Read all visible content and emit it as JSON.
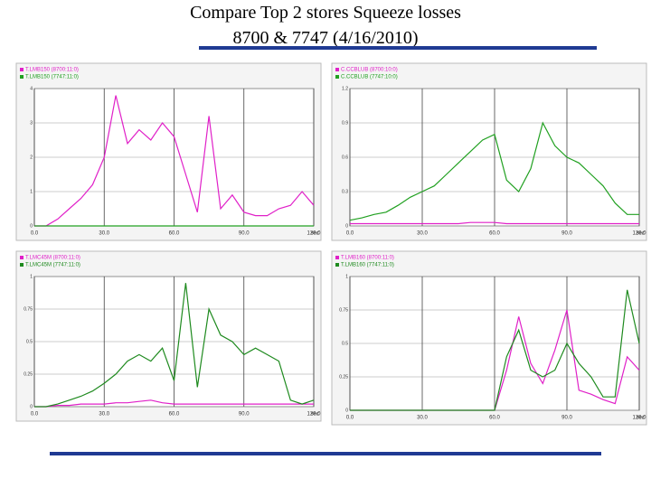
{
  "header": {
    "title_line1": "Compare Top 2 stores Squeeze losses",
    "title_line2": "8700  & 7747 (4/16/2010)"
  },
  "chart_data": [
    {
      "type": "line",
      "x_label": "sec",
      "x": [
        0,
        5,
        10,
        15,
        20,
        25,
        30,
        35,
        40,
        45,
        50,
        55,
        60,
        65,
        70,
        75,
        80,
        85,
        90,
        95,
        100,
        105,
        110,
        115,
        120
      ],
      "xlim": [
        0,
        120
      ],
      "xticks": [
        {
          "value": 0,
          "label": "0.0"
        },
        {
          "value": 30,
          "label": "30.0"
        },
        {
          "value": 60,
          "label": "60.0"
        },
        {
          "value": 90,
          "label": "90.0"
        },
        {
          "value": 120,
          "label": "120.0"
        }
      ],
      "ylim": [
        0,
        4
      ],
      "yticks": [
        0,
        1,
        2,
        3,
        4
      ],
      "grid": true,
      "series": [
        {
          "name": "T.LMB150 (8700:11:0)",
          "color": "#e020c8",
          "values": [
            0,
            0,
            0.2,
            0.5,
            0.8,
            1.2,
            2.0,
            3.8,
            2.4,
            2.8,
            2.5,
            3.0,
            2.6,
            1.5,
            0.4,
            3.2,
            0.5,
            0.9,
            0.4,
            0.3,
            0.3,
            0.5,
            0.6,
            1.0,
            0.6
          ]
        },
        {
          "name": "T.LMB150 (7747:11:0)",
          "color": "#20a020",
          "values": [
            0,
            0,
            0,
            0,
            0,
            0,
            0,
            0,
            0,
            0,
            0,
            0,
            0,
            0,
            0,
            0,
            0,
            0,
            0,
            0,
            0,
            0,
            0,
            0,
            0
          ]
        }
      ]
    },
    {
      "type": "line",
      "x_label": "sec",
      "x": [
        0,
        5,
        10,
        15,
        20,
        25,
        30,
        35,
        40,
        45,
        50,
        55,
        60,
        65,
        70,
        75,
        80,
        85,
        90,
        95,
        100,
        105,
        110,
        115,
        120
      ],
      "xlim": [
        0,
        120
      ],
      "xticks": [
        {
          "value": 0,
          "label": "0.0"
        },
        {
          "value": 30,
          "label": "30.0"
        },
        {
          "value": 60,
          "label": "60.0"
        },
        {
          "value": 90,
          "label": "90.0"
        },
        {
          "value": 120,
          "label": "120.0"
        }
      ],
      "ylim": [
        0,
        1.2
      ],
      "yticks": [
        0,
        0.3,
        0.6,
        0.9,
        1.2
      ],
      "grid": true,
      "series": [
        {
          "name": "C.CCBLUB (8700:10:0)",
          "color": "#e020c8",
          "values": [
            0.02,
            0.02,
            0.02,
            0.02,
            0.02,
            0.02,
            0.02,
            0.02,
            0.02,
            0.02,
            0.03,
            0.03,
            0.03,
            0.02,
            0.02,
            0.02,
            0.02,
            0.02,
            0.02,
            0.02,
            0.02,
            0.02,
            0.02,
            0.02,
            0.02
          ]
        },
        {
          "name": "C.CCBLUB (7747:10:0)",
          "color": "#20a020",
          "values": [
            0.05,
            0.07,
            0.1,
            0.12,
            0.18,
            0.25,
            0.3,
            0.35,
            0.45,
            0.55,
            0.65,
            0.75,
            0.8,
            0.4,
            0.3,
            0.5,
            0.9,
            0.7,
            0.6,
            0.55,
            0.45,
            0.35,
            0.2,
            0.1,
            0.1
          ]
        }
      ]
    },
    {
      "type": "line",
      "x_label": "sec",
      "x": [
        0,
        5,
        10,
        15,
        20,
        25,
        30,
        35,
        40,
        45,
        50,
        55,
        60,
        65,
        70,
        75,
        80,
        85,
        90,
        95,
        100,
        105,
        110,
        115,
        120
      ],
      "xlim": [
        0,
        120
      ],
      "xticks": [
        {
          "value": 0,
          "label": "0.0"
        },
        {
          "value": 30,
          "label": "30.0"
        },
        {
          "value": 60,
          "label": "60.0"
        },
        {
          "value": 90,
          "label": "90.0"
        },
        {
          "value": 120,
          "label": "120.0"
        }
      ],
      "ylim": [
        0,
        1
      ],
      "yticks": [
        0,
        0.25,
        0.5,
        0.75,
        1
      ],
      "grid": true,
      "series": [
        {
          "name": "T.LMC45M (8700:11:0)",
          "color": "#e020c8",
          "values": [
            0,
            0,
            0.01,
            0.01,
            0.02,
            0.02,
            0.02,
            0.03,
            0.03,
            0.04,
            0.05,
            0.03,
            0.02,
            0.02,
            0.02,
            0.02,
            0.02,
            0.02,
            0.02,
            0.02,
            0.02,
            0.02,
            0.02,
            0.02,
            0.02
          ]
        },
        {
          "name": "T.LMC45M (7747:11:0)",
          "color": "#1e8a1e",
          "values": [
            0,
            0,
            0.02,
            0.05,
            0.08,
            0.12,
            0.18,
            0.25,
            0.35,
            0.4,
            0.35,
            0.45,
            0.2,
            0.95,
            0.15,
            0.75,
            0.55,
            0.5,
            0.4,
            0.45,
            0.4,
            0.35,
            0.05,
            0.02,
            0.05
          ]
        }
      ]
    },
    {
      "type": "line",
      "x_label": "sec",
      "x": [
        0,
        5,
        10,
        15,
        20,
        25,
        30,
        35,
        40,
        45,
        50,
        55,
        60,
        65,
        70,
        75,
        80,
        85,
        90,
        95,
        100,
        105,
        110,
        115,
        120
      ],
      "xlim": [
        0,
        120
      ],
      "xticks": [
        {
          "value": 0,
          "label": "0.0"
        },
        {
          "value": 30,
          "label": "30.0"
        },
        {
          "value": 60,
          "label": "60.0"
        },
        {
          "value": 90,
          "label": "90.0"
        },
        {
          "value": 120,
          "label": "120.0"
        }
      ],
      "ylim": [
        0,
        1
      ],
      "yticks": [
        0,
        0.25,
        0.5,
        0.75,
        1
      ],
      "grid": true,
      "series": [
        {
          "name": "T.LMB160 (8700:11:0)",
          "color": "#e020c8",
          "values": [
            0,
            0,
            0,
            0,
            0,
            0,
            0,
            0,
            0,
            0,
            0,
            0,
            0,
            0.3,
            0.7,
            0.35,
            0.2,
            0.45,
            0.75,
            0.15,
            0.12,
            0.08,
            0.05,
            0.4,
            0.3
          ]
        },
        {
          "name": "T.LMB160 (7747:11:0)",
          "color": "#1e8a1e",
          "values": [
            0,
            0,
            0,
            0,
            0,
            0,
            0,
            0,
            0,
            0,
            0,
            0,
            0,
            0.4,
            0.6,
            0.3,
            0.25,
            0.3,
            0.5,
            0.35,
            0.25,
            0.1,
            0.1,
            0.9,
            0.5
          ]
        }
      ]
    }
  ]
}
